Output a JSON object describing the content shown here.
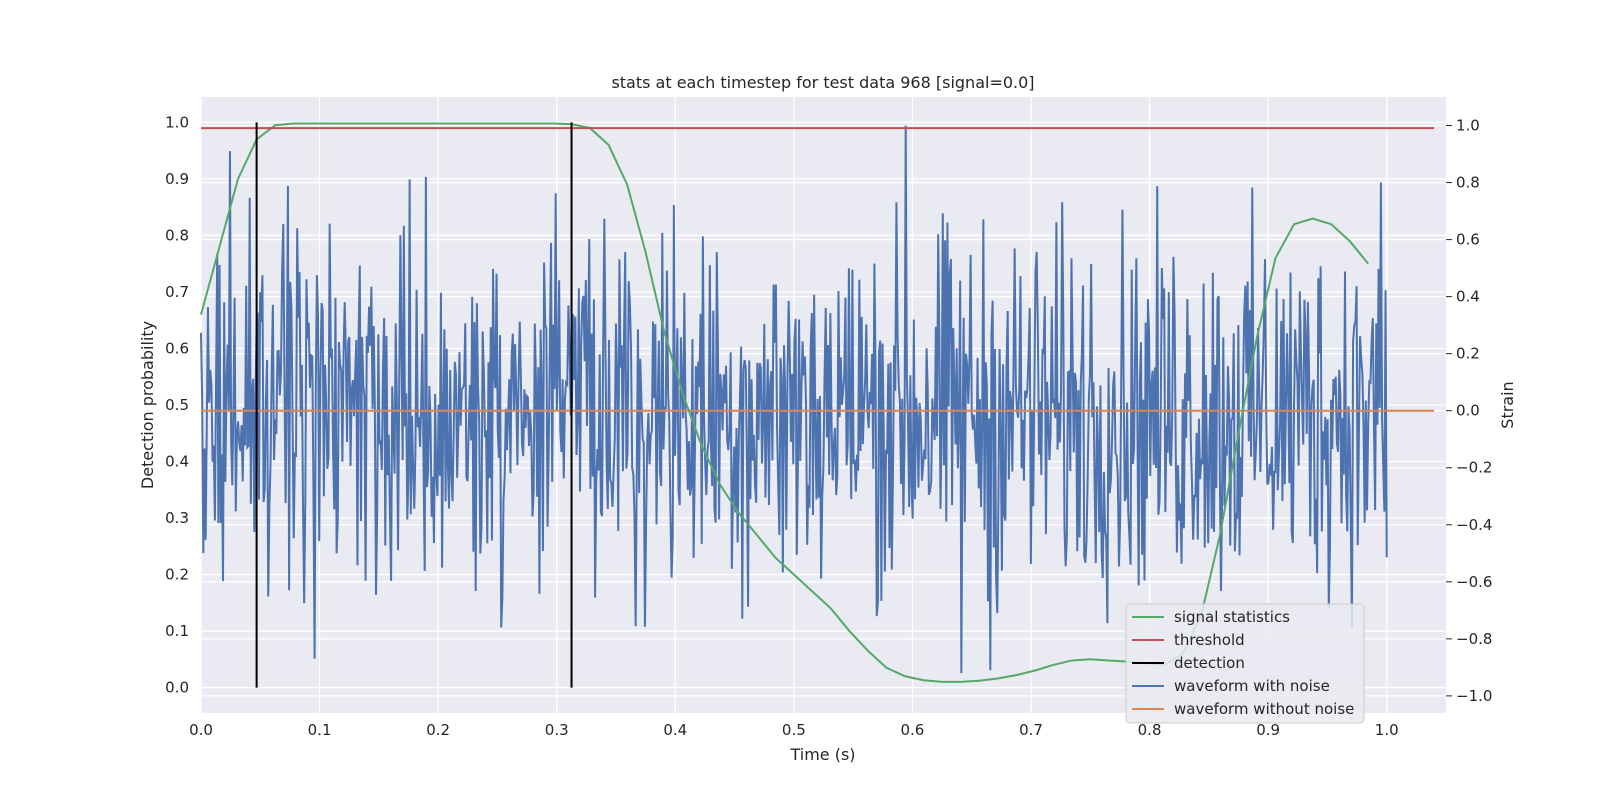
{
  "chart_data": {
    "type": "line",
    "title": "stats at each timestep for test data 968 [signal=0.0]",
    "xlabel": "Time (s)",
    "ylabel_left": "Detection probability",
    "ylabel_right": "Strain",
    "xlim": [
      0.0,
      1.05
    ],
    "ylim_left": [
      -0.045,
      1.045
    ],
    "ylim_right": [
      -1.06,
      1.1
    ],
    "x_ticks": [
      "0.0",
      "0.1",
      "0.2",
      "0.3",
      "0.4",
      "0.5",
      "0.6",
      "0.7",
      "0.8",
      "0.9",
      "1.0"
    ],
    "y_left_ticks": [
      "0.0",
      "0.1",
      "0.2",
      "0.3",
      "0.4",
      "0.5",
      "0.6",
      "0.7",
      "0.8",
      "0.9",
      "1.0"
    ],
    "y_right_ticks": [
      "−1.0",
      "−0.8",
      "−0.6",
      "−0.4",
      "−0.2",
      "0.0",
      "0.2",
      "0.4",
      "0.6",
      "0.8",
      "1.0"
    ],
    "grid": true,
    "legend_position": "lower-right",
    "colors": {
      "signal_statistics": "#55a868",
      "threshold": "#c44e52",
      "detection": "#000000",
      "waveform_with_noise": "#4c72b0",
      "waveform_without_noise": "#dd8452",
      "background": "#eaeaf2"
    },
    "series": [
      {
        "name": "signal statistics",
        "axis": "left",
        "x": [
          0.0,
          0.0156,
          0.0312,
          0.0469,
          0.0625,
          0.0781,
          0.0938,
          0.1094,
          0.125,
          0.1406,
          0.1562,
          0.1719,
          0.1875,
          0.2031,
          0.2188,
          0.2344,
          0.25,
          0.2656,
          0.2812,
          0.2969,
          0.3125,
          0.3281,
          0.3438,
          0.3594,
          0.375,
          0.3906,
          0.4062,
          0.4219,
          0.4375,
          0.4531,
          0.4688,
          0.4844,
          0.5,
          0.5156,
          0.5312,
          0.5469,
          0.5625,
          0.5781,
          0.5938,
          0.6094,
          0.625,
          0.6406,
          0.6562,
          0.6719,
          0.6875,
          0.7031,
          0.7188,
          0.7344,
          0.75,
          0.7656,
          0.7812,
          0.7969,
          0.8125,
          0.8281,
          0.8438,
          0.8594,
          0.875,
          0.8906,
          0.9062,
          0.9219,
          0.9375,
          0.9531,
          0.9688,
          0.9844
        ],
        "y": [
          0.66,
          0.78,
          0.9,
          0.97,
          0.995,
          0.998,
          0.998,
          0.998,
          0.998,
          0.998,
          0.998,
          0.998,
          0.998,
          0.998,
          0.998,
          0.998,
          0.998,
          0.998,
          0.998,
          0.998,
          0.997,
          0.99,
          0.96,
          0.89,
          0.77,
          0.63,
          0.52,
          0.43,
          0.36,
          0.31,
          0.27,
          0.23,
          0.2,
          0.17,
          0.14,
          0.1,
          0.065,
          0.035,
          0.02,
          0.013,
          0.01,
          0.01,
          0.012,
          0.016,
          0.022,
          0.03,
          0.04,
          0.048,
          0.05,
          0.048,
          0.046,
          0.043,
          0.04,
          0.06,
          0.13,
          0.27,
          0.45,
          0.62,
          0.76,
          0.82,
          0.83,
          0.82,
          0.79,
          0.75
        ]
      },
      {
        "name": "threshold",
        "axis": "left",
        "x": [
          0.0,
          1.04
        ],
        "y": [
          0.99,
          0.99
        ]
      },
      {
        "name": "detection",
        "axis": "left",
        "segments": [
          {
            "x": 0.0469,
            "y": [
              0.0,
              1.0
            ]
          },
          {
            "x": 0.3125,
            "y": [
              0.0,
              1.0
            ]
          }
        ]
      },
      {
        "name": "waveform with noise",
        "axis": "right",
        "x_range": [
          0.0,
          1.0
        ],
        "n_points": 1024,
        "value_range": [
          -0.99,
          1.0
        ],
        "peaks": [
          {
            "x": 0.594,
            "y": 1.0
          },
          {
            "x": 0.024,
            "y": 0.91
          },
          {
            "x": 0.995,
            "y": 0.8
          },
          {
            "x": 0.096,
            "y": -0.87
          },
          {
            "x": 0.641,
            "y": -0.92
          },
          {
            "x": 0.666,
            "y": -0.91
          }
        ]
      },
      {
        "name": "waveform without noise",
        "axis": "right",
        "x": [
          0.0,
          1.04
        ],
        "y": [
          0.0,
          0.0
        ]
      }
    ]
  }
}
